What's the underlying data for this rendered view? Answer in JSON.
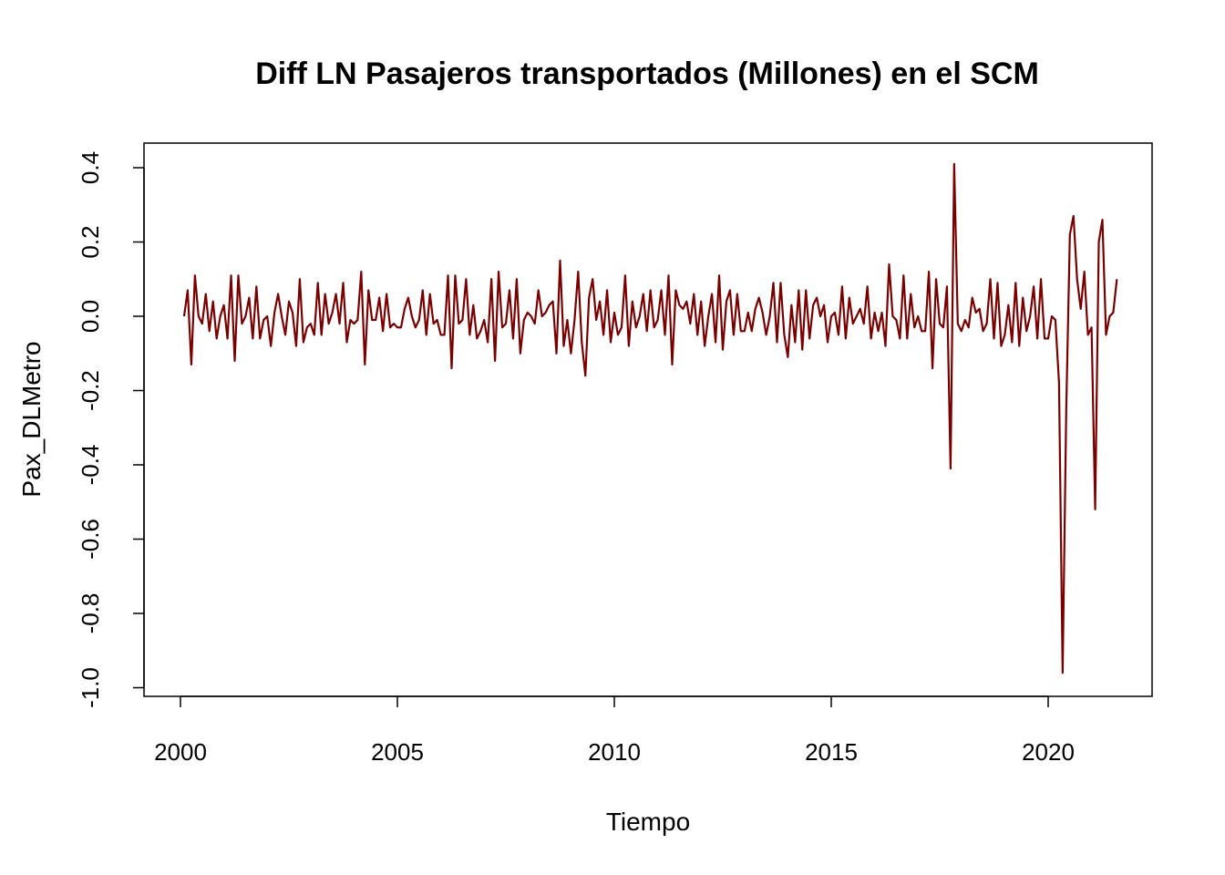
{
  "chart_data": {
    "type": "line",
    "title": "Diff LN Pasajeros transportados (Millones) en el SCM",
    "xlabel": "Tiempo",
    "ylabel": "Pax_DLMetro",
    "xlim": [
      1999.9,
      2022.2
    ],
    "ylim": [
      -1.0,
      0.45
    ],
    "x_ticks": [
      2000,
      2005,
      2010,
      2015,
      2020
    ],
    "x_tick_labels": [
      "2000",
      "2005",
      "2010",
      "2015",
      "2020"
    ],
    "y_ticks": [
      0.4,
      0.2,
      0.0,
      -0.2,
      -0.4,
      -0.6,
      -0.8,
      -1.0
    ],
    "y_tick_labels": [
      "0.4",
      "0.2",
      "0.0",
      "-0.2",
      "-0.4",
      "-0.6",
      "-0.8",
      "-1.0"
    ],
    "grid": false,
    "line_color": "#7a0000",
    "x_start": 2000.0833,
    "x_step": 0.0833333,
    "series": [
      {
        "name": "",
        "values": [
          0.0,
          0.07,
          -0.13,
          0.11,
          0.0,
          -0.02,
          0.06,
          -0.04,
          0.04,
          -0.06,
          0.0,
          0.03,
          -0.06,
          0.11,
          -0.12,
          0.11,
          -0.02,
          0.0,
          0.05,
          -0.06,
          0.08,
          -0.06,
          -0.01,
          0.0,
          -0.08,
          0.01,
          0.06,
          0.0,
          -0.05,
          0.04,
          0.01,
          -0.08,
          0.1,
          -0.07,
          -0.03,
          -0.02,
          -0.05,
          0.09,
          -0.05,
          0.06,
          -0.02,
          0.01,
          0.06,
          -0.02,
          0.09,
          -0.07,
          -0.01,
          -0.02,
          -0.01,
          0.12,
          -0.13,
          0.07,
          -0.01,
          -0.01,
          0.05,
          -0.04,
          0.06,
          -0.03,
          -0.02,
          -0.03,
          -0.03,
          0.02,
          0.05,
          0.0,
          -0.03,
          -0.01,
          0.07,
          -0.05,
          0.06,
          -0.02,
          -0.01,
          -0.05,
          -0.05,
          0.11,
          -0.14,
          0.11,
          -0.02,
          -0.01,
          0.1,
          -0.05,
          0.03,
          -0.06,
          -0.04,
          -0.01,
          -0.07,
          0.1,
          -0.12,
          0.12,
          -0.03,
          -0.02,
          0.07,
          -0.06,
          0.1,
          -0.1,
          -0.01,
          0.01,
          0.0,
          -0.02,
          0.07,
          0.0,
          0.01,
          0.03,
          0.04,
          -0.1,
          0.15,
          -0.08,
          -0.01,
          -0.1,
          -0.01,
          0.12,
          -0.07,
          -0.16,
          0.05,
          0.1,
          -0.01,
          0.04,
          -0.05,
          0.07,
          -0.07,
          0.01,
          -0.05,
          -0.03,
          0.11,
          -0.08,
          0.04,
          -0.03,
          0.0,
          0.06,
          -0.04,
          0.07,
          -0.03,
          -0.01,
          0.07,
          -0.05,
          0.11,
          -0.13,
          0.07,
          0.03,
          0.02,
          0.04,
          -0.02,
          0.06,
          -0.05,
          0.04,
          -0.08,
          0.0,
          0.06,
          -0.07,
          0.11,
          -0.09,
          0.04,
          0.07,
          -0.05,
          0.06,
          -0.04,
          -0.04,
          0.01,
          -0.04,
          0.02,
          0.05,
          0.01,
          -0.05,
          0.0,
          0.09,
          -0.07,
          0.09,
          -0.05,
          -0.11,
          0.03,
          -0.07,
          0.07,
          -0.09,
          0.07,
          -0.06,
          0.03,
          0.05,
          0.0,
          0.03,
          -0.07,
          0.0,
          0.01,
          -0.05,
          0.08,
          -0.06,
          0.05,
          -0.02,
          0.0,
          0.02,
          -0.02,
          0.08,
          -0.06,
          0.01,
          -0.04,
          0.01,
          -0.08,
          0.14,
          0.0,
          -0.01,
          -0.06,
          0.11,
          -0.06,
          0.06,
          -0.03,
          0.0,
          -0.04,
          -0.04,
          0.12,
          -0.14,
          0.1,
          -0.02,
          -0.03,
          0.08,
          -0.41,
          0.41,
          -0.02,
          -0.04,
          -0.01,
          -0.03,
          0.05,
          0.01,
          0.02,
          -0.04,
          -0.02,
          0.1,
          -0.06,
          0.09,
          -0.08,
          -0.05,
          0.03,
          -0.07,
          0.09,
          -0.08,
          0.05,
          -0.04,
          0.0,
          0.08,
          -0.06,
          0.1,
          -0.06,
          -0.06,
          0.0,
          -0.01,
          -0.18,
          -0.96,
          -0.25,
          0.22,
          0.27,
          0.1,
          0.02,
          0.12,
          -0.05,
          -0.03,
          -0.52,
          0.2,
          0.26,
          -0.05,
          0.0,
          0.01,
          0.1
        ]
      }
    ]
  }
}
